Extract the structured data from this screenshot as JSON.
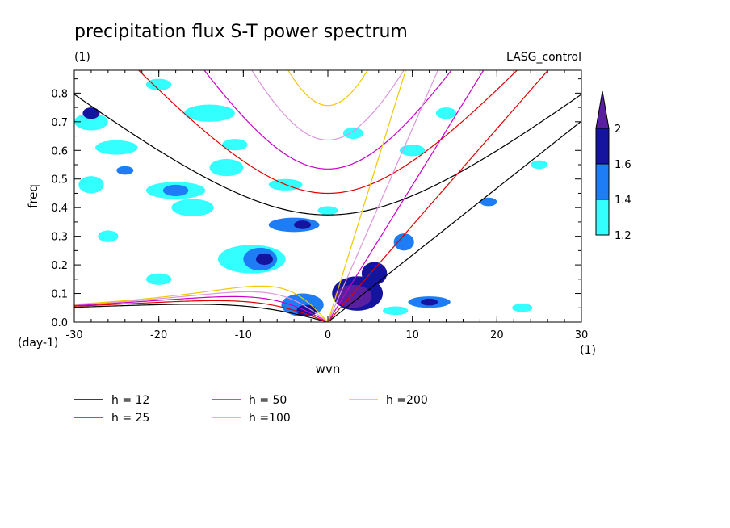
{
  "chart_data": {
    "type": "heatmap",
    "title": "precipitation flux S-T power spectrum",
    "subtitle_left": "(1)",
    "subtitle_right": "LASG_control",
    "xlabel": "wvn",
    "ylabel": "freq",
    "x_unit_label": "(1)",
    "y_unit_label": "(day-1)",
    "xlim": [
      -30,
      30
    ],
    "ylim": [
      0,
      0.88
    ],
    "x_ticks": [
      -30,
      -20,
      -10,
      0,
      10,
      20,
      30
    ],
    "x_tick_labels": [
      "-30",
      "-20",
      "-10",
      "0",
      "10",
      "20",
      "30"
    ],
    "y_ticks": [
      0,
      0.1,
      0.2,
      0.3,
      0.4,
      0.5,
      0.6,
      0.7,
      0.8
    ],
    "y_tick_labels": [
      "0.0",
      "0.1",
      "0.2",
      "0.3",
      "0.4",
      "0.5",
      "0.6",
      "0.7",
      "0.8"
    ],
    "colorbar": {
      "levels": [
        1.2,
        1.4,
        1.6,
        2
      ],
      "level_labels": [
        "1.2",
        "1.4",
        "1.6",
        "2"
      ],
      "colors": [
        "#33ffff",
        "#1e7df5",
        "#14149e",
        "#5a1ea0"
      ]
    },
    "series": [
      {
        "name": "h = 12",
        "color": "#000000",
        "h": 12
      },
      {
        "name": "h = 25",
        "color": "#e00000",
        "h": 25
      },
      {
        "name": "h = 50",
        "color": "#c800c8",
        "h": 50
      },
      {
        "name": "h =100",
        "color": "#dc96dc",
        "h": 100
      },
      {
        "name": "h =200",
        "color": "#f0c800",
        "h": 200
      }
    ],
    "blobs": [
      {
        "x": 3.5,
        "y": 0.1,
        "rx": 3.0,
        "ry": 0.06,
        "level": 3
      },
      {
        "x": 3.0,
        "y": 0.09,
        "rx": 2.2,
        "ry": 0.04,
        "level": 4
      },
      {
        "x": 5.5,
        "y": 0.17,
        "rx": 1.5,
        "ry": 0.04,
        "level": 3
      },
      {
        "x": 9.0,
        "y": 0.28,
        "rx": 1.2,
        "ry": 0.03,
        "level": 2
      },
      {
        "x": -3.0,
        "y": 0.06,
        "rx": 2.5,
        "ry": 0.04,
        "level": 2
      },
      {
        "x": -2.5,
        "y": 0.04,
        "rx": 1.2,
        "ry": 0.02,
        "level": 3
      },
      {
        "x": -9.0,
        "y": 0.22,
        "rx": 4.0,
        "ry": 0.05,
        "level": 1
      },
      {
        "x": -8.0,
        "y": 0.22,
        "rx": 2.0,
        "ry": 0.04,
        "level": 2
      },
      {
        "x": -7.5,
        "y": 0.22,
        "rx": 1.0,
        "ry": 0.02,
        "level": 3
      },
      {
        "x": -4.0,
        "y": 0.34,
        "rx": 3.0,
        "ry": 0.025,
        "level": 2
      },
      {
        "x": -3.0,
        "y": 0.34,
        "rx": 1.0,
        "ry": 0.015,
        "level": 3
      },
      {
        "x": -18.0,
        "y": 0.46,
        "rx": 3.5,
        "ry": 0.03,
        "level": 1
      },
      {
        "x": -18.0,
        "y": 0.46,
        "rx": 1.5,
        "ry": 0.02,
        "level": 2
      },
      {
        "x": -16.0,
        "y": 0.4,
        "rx": 2.5,
        "ry": 0.03,
        "level": 1
      },
      {
        "x": -28.0,
        "y": 0.7,
        "rx": 2.0,
        "ry": 0.03,
        "level": 1
      },
      {
        "x": -28.0,
        "y": 0.73,
        "rx": 1.0,
        "ry": 0.02,
        "level": 3
      },
      {
        "x": -25.0,
        "y": 0.61,
        "rx": 2.5,
        "ry": 0.025,
        "level": 1
      },
      {
        "x": -14.0,
        "y": 0.73,
        "rx": 3.0,
        "ry": 0.03,
        "level": 1
      },
      {
        "x": -12.0,
        "y": 0.54,
        "rx": 2.0,
        "ry": 0.03,
        "level": 1
      },
      {
        "x": -28.0,
        "y": 0.48,
        "rx": 1.5,
        "ry": 0.03,
        "level": 1
      },
      {
        "x": -24.0,
        "y": 0.53,
        "rx": 1.0,
        "ry": 0.015,
        "level": 2
      },
      {
        "x": -11.0,
        "y": 0.62,
        "rx": 1.5,
        "ry": 0.02,
        "level": 1
      },
      {
        "x": -5.0,
        "y": 0.48,
        "rx": 2.0,
        "ry": 0.02,
        "level": 1
      },
      {
        "x": 10.0,
        "y": 0.6,
        "rx": 1.5,
        "ry": 0.02,
        "level": 1
      },
      {
        "x": 12.0,
        "y": 0.07,
        "rx": 2.5,
        "ry": 0.02,
        "level": 2
      },
      {
        "x": 12.0,
        "y": 0.07,
        "rx": 1.0,
        "ry": 0.012,
        "level": 3
      },
      {
        "x": 3.0,
        "y": 0.66,
        "rx": 1.2,
        "ry": 0.02,
        "level": 1
      },
      {
        "x": -20.0,
        "y": 0.15,
        "rx": 1.5,
        "ry": 0.02,
        "level": 1
      },
      {
        "x": 14.0,
        "y": 0.73,
        "rx": 1.2,
        "ry": 0.02,
        "level": 1
      },
      {
        "x": 0.0,
        "y": 0.39,
        "rx": 1.2,
        "ry": 0.015,
        "level": 1
      },
      {
        "x": -26.0,
        "y": 0.3,
        "rx": 1.2,
        "ry": 0.02,
        "level": 1
      },
      {
        "x": 19.0,
        "y": 0.42,
        "rx": 1.0,
        "ry": 0.015,
        "level": 2
      },
      {
        "x": 23.0,
        "y": 0.05,
        "rx": 1.2,
        "ry": 0.015,
        "level": 1
      },
      {
        "x": 8.0,
        "y": 0.04,
        "rx": 1.5,
        "ry": 0.015,
        "level": 1
      },
      {
        "x": -20.0,
        "y": 0.83,
        "rx": 1.5,
        "ry": 0.02,
        "level": 1
      },
      {
        "x": 25.0,
        "y": 0.55,
        "rx": 1.0,
        "ry": 0.015,
        "level": 1
      }
    ]
  }
}
